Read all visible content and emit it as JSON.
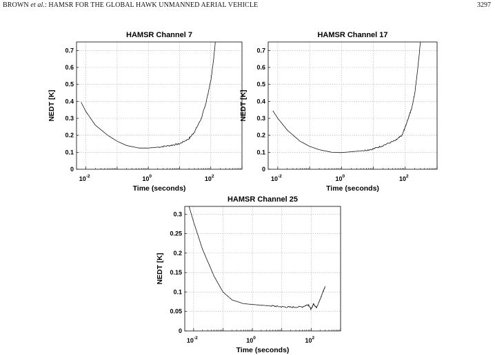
{
  "running_head": {
    "left_prefix": "BROWN ",
    "left_italic": "et al.",
    "left_suffix": ": HAMSR FOR THE GLOBAL HAWK UNMANNED AERIAL VEHICLE",
    "page_number": "3297"
  },
  "chart_data": [
    {
      "type": "line",
      "title": "HAMSR Channel 7",
      "xlabel": "Time (seconds)",
      "ylabel": "NEDT [K]",
      "xscale": "log",
      "xlim": [
        0.005,
        1000
      ],
      "ylim": [
        0,
        0.75
      ],
      "yticks": [
        "0",
        "0.1",
        "0.2",
        "0.3",
        "0.4",
        "0.5",
        "0.6",
        "0.7"
      ],
      "xticks": [
        {
          "base": "10",
          "exp": "-2",
          "value": 0.01
        },
        {
          "base": "10",
          "exp": "0",
          "value": 1
        },
        {
          "base": "10",
          "exp": "2",
          "value": 100
        }
      ],
      "grid": true,
      "x": [
        0.007,
        0.01,
        0.02,
        0.05,
        0.1,
        0.2,
        0.5,
        1,
        2,
        5,
        10,
        20,
        30,
        50,
        70,
        100,
        120,
        140
      ],
      "y": [
        0.395,
        0.34,
        0.26,
        0.2,
        0.165,
        0.14,
        0.125,
        0.125,
        0.13,
        0.14,
        0.15,
        0.18,
        0.22,
        0.3,
        0.39,
        0.52,
        0.63,
        0.75
      ],
      "noisy_from": 2
    },
    {
      "type": "line",
      "title": "HAMSR Channel 17",
      "xlabel": "Time (seconds)",
      "ylabel": "NEDT [K]",
      "xscale": "log",
      "xlim": [
        0.005,
        1000
      ],
      "ylim": [
        0,
        0.75
      ],
      "yticks": [
        "0",
        "0.1",
        "0.2",
        "0.3",
        "0.4",
        "0.5",
        "0.6",
        "0.7"
      ],
      "xticks": [
        {
          "base": "10",
          "exp": "-2",
          "value": 0.01
        },
        {
          "base": "10",
          "exp": "0",
          "value": 1
        },
        {
          "base": "10",
          "exp": "2",
          "value": 100
        }
      ],
      "grid": true,
      "x": [
        0.007,
        0.01,
        0.02,
        0.05,
        0.1,
        0.2,
        0.5,
        1,
        2,
        5,
        10,
        20,
        50,
        80,
        100,
        130,
        160,
        200,
        250,
        300
      ],
      "y": [
        0.345,
        0.3,
        0.23,
        0.165,
        0.135,
        0.115,
        0.1,
        0.098,
        0.103,
        0.11,
        0.12,
        0.14,
        0.17,
        0.2,
        0.25,
        0.31,
        0.36,
        0.45,
        0.6,
        0.75
      ],
      "noisy_from": 5
    },
    {
      "type": "line",
      "title": "HAMSR Channel 25",
      "xlabel": "Time (seconds)",
      "ylabel": "NEDT [K]",
      "xscale": "log",
      "xlim": [
        0.005,
        1000
      ],
      "ylim": [
        0,
        0.32
      ],
      "yticks": [
        "0",
        "0.05",
        "0.1",
        "0.15",
        "0.2",
        "0.25",
        "0.3"
      ],
      "ytick_values": [
        0,
        0.05,
        0.1,
        0.15,
        0.2,
        0.25,
        0.3
      ],
      "xticks": [
        {
          "base": "10",
          "exp": "-2",
          "value": 0.01
        },
        {
          "base": "10",
          "exp": "0",
          "value": 1
        },
        {
          "base": "10",
          "exp": "2",
          "value": 100
        }
      ],
      "grid": true,
      "x": [
        0.007,
        0.01,
        0.02,
        0.05,
        0.1,
        0.2,
        0.5,
        1,
        2,
        5,
        10,
        20,
        50,
        80,
        100,
        120,
        150,
        200,
        250,
        300
      ],
      "y": [
        0.32,
        0.28,
        0.21,
        0.14,
        0.1,
        0.08,
        0.07,
        0.068,
        0.066,
        0.064,
        0.062,
        0.061,
        0.062,
        0.068,
        0.055,
        0.07,
        0.06,
        0.08,
        0.1,
        0.115
      ],
      "noisy_from": 4
    }
  ]
}
